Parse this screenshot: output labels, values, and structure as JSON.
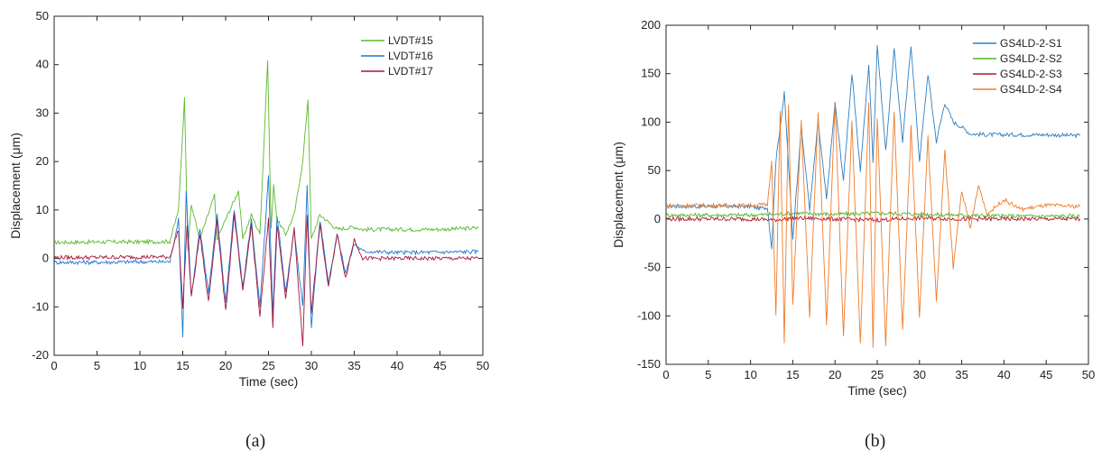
{
  "figure_a": {
    "caption": "(a)",
    "chart_data": {
      "type": "line",
      "xlabel": "Time (sec)",
      "ylabel": "Displacement (μm)",
      "xlim": [
        0,
        50
      ],
      "ylim": [
        -20,
        50
      ],
      "xticks": [
        "0",
        "5",
        "10",
        "15",
        "20",
        "25",
        "30",
        "35",
        "40",
        "45",
        "50"
      ],
      "yticks": [
        "-20",
        "-10",
        "0",
        "10",
        "20",
        "30",
        "40",
        "50"
      ],
      "grid": false,
      "legend": "top-right",
      "series": [
        {
          "name": "LVDT#15",
          "color": "#5cb82e",
          "x": [
            0,
            5,
            10,
            13.5,
            14.5,
            15.2,
            15.6,
            16,
            17,
            18.7,
            19,
            20,
            21.5,
            22,
            23,
            24,
            24.9,
            25.3,
            25.6,
            26,
            27,
            28,
            29,
            29.6,
            30,
            31,
            33,
            35,
            36,
            40,
            45,
            49.5
          ],
          "y": [
            3.3,
            3.4,
            3.4,
            3.5,
            10,
            33,
            2,
            11,
            4,
            13,
            4,
            8,
            14,
            4,
            9,
            5,
            41,
            6,
            15,
            8,
            5,
            9,
            20,
            33,
            4,
            9,
            6,
            6.5,
            6,
            6,
            6,
            6.3
          ]
        },
        {
          "name": "LVDT#16",
          "color": "#1f77d4",
          "x": [
            0,
            5,
            10,
            13.5,
            14.5,
            15,
            15.4,
            16,
            17,
            18,
            19,
            20,
            21,
            22,
            23,
            24,
            25,
            25.5,
            26,
            27,
            28,
            29,
            29.5,
            30,
            31,
            32,
            33,
            34,
            35,
            36,
            40,
            45,
            49.5
          ],
          "y": [
            -0.8,
            -0.8,
            -0.7,
            -0.7,
            8,
            -16,
            14,
            -8,
            6,
            -7,
            9,
            -9,
            10,
            -6,
            8,
            -10,
            17,
            -12,
            9,
            -7,
            6,
            -10,
            15,
            -14,
            8,
            -5,
            5,
            -3,
            3,
            1.5,
            1.2,
            1.3,
            1.4
          ]
        },
        {
          "name": "LVDT#17",
          "color": "#a8173a",
          "x": [
            0,
            5,
            10,
            13.5,
            14.5,
            15,
            15.5,
            16,
            17,
            18,
            19,
            20,
            21,
            22,
            23,
            24,
            25,
            25.5,
            26,
            27,
            28,
            29,
            29.5,
            30,
            31,
            32,
            33,
            34,
            35,
            36,
            40,
            45,
            49.5
          ],
          "y": [
            0.2,
            0.2,
            0.3,
            0.3,
            6,
            -10,
            7,
            -8,
            5,
            -9,
            8,
            -11,
            9,
            -7,
            7,
            -12,
            8,
            -14,
            7,
            -8,
            6,
            -18,
            9,
            -11,
            7,
            -6,
            5,
            -4,
            4,
            0,
            0,
            0,
            0
          ]
        }
      ]
    }
  },
  "figure_b": {
    "caption": "(b)",
    "chart_data": {
      "type": "line",
      "xlabel": "Time (sec)",
      "ylabel": "Displacement (μm)",
      "xlim": [
        0,
        50
      ],
      "ylim": [
        -150,
        200
      ],
      "xticks": [
        "0",
        "5",
        "10",
        "15",
        "20",
        "25",
        "30",
        "35",
        "40",
        "45",
        "50"
      ],
      "yticks": [
        "-150",
        "-100",
        "-50",
        "0",
        "50",
        "100",
        "150",
        "200"
      ],
      "grid": false,
      "legend": "top-right",
      "series": [
        {
          "name": "GS4LD-2-S1",
          "color": "#2f7fc1",
          "x": [
            0,
            5,
            10,
            11,
            12,
            12.5,
            13,
            14,
            15,
            16,
            17,
            18,
            19,
            20,
            21,
            22,
            23,
            24,
            24.5,
            25,
            26,
            27,
            28,
            29,
            30,
            31,
            32,
            33,
            34,
            35,
            36,
            38,
            40,
            45,
            49
          ],
          "y": [
            13,
            13,
            13,
            11,
            12,
            -30,
            60,
            130,
            -20,
            95,
            10,
            100,
            20,
            120,
            40,
            150,
            50,
            160,
            60,
            180,
            70,
            175,
            80,
            180,
            60,
            150,
            80,
            120,
            100,
            95,
            88,
            87,
            87,
            87,
            86
          ]
        },
        {
          "name": "GS4LD-2-S2",
          "color": "#4fb52a",
          "x": [
            0,
            5,
            10,
            13,
            15,
            20,
            25,
            30,
            35,
            40,
            45,
            49
          ],
          "y": [
            4,
            4,
            4,
            5,
            6,
            5,
            6,
            5,
            4,
            3,
            3,
            3
          ]
        },
        {
          "name": "GS4LD-2-S3",
          "color": "#b3172f",
          "x": [
            0,
            5,
            10,
            13,
            15,
            20,
            25,
            30,
            35,
            40,
            45,
            49
          ],
          "y": [
            0,
            0,
            0,
            -1,
            1,
            0,
            -1,
            1,
            0,
            0,
            0,
            0
          ]
        },
        {
          "name": "GS4LD-2-S4",
          "color": "#f07c2a",
          "x": [
            0,
            5,
            10,
            12,
            12.5,
            13,
            13.5,
            14,
            14.5,
            15,
            16,
            17,
            18,
            19,
            20,
            21,
            22,
            23,
            24,
            24.5,
            25,
            26,
            27,
            28,
            29,
            30,
            31,
            32,
            33,
            34,
            35,
            36,
            37,
            38,
            40,
            42,
            45,
            49
          ],
          "y": [
            14,
            14,
            14,
            15,
            60,
            -100,
            110,
            -130,
            120,
            -90,
            100,
            -100,
            110,
            -110,
            120,
            -120,
            100,
            -130,
            120,
            -135,
            105,
            -130,
            110,
            -115,
            95,
            -100,
            85,
            -85,
            70,
            -50,
            30,
            -10,
            35,
            5,
            20,
            10,
            14,
            13
          ]
        }
      ]
    }
  }
}
